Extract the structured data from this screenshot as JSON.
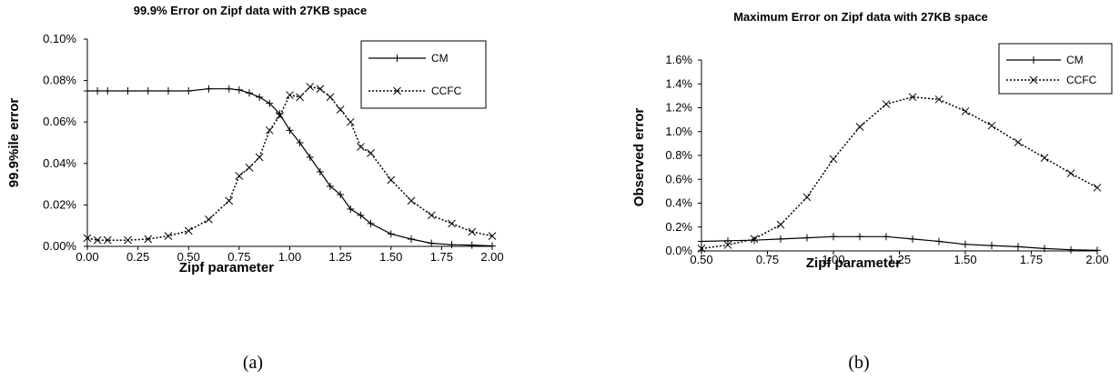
{
  "chart_data": [
    {
      "type": "line",
      "title": "99.9% Error on Zipf data with 27KB space",
      "xlabel": "Zipf parameter",
      "ylabel": "99.9%ile error",
      "xlim": [
        0,
        2
      ],
      "ylim": [
        0,
        0.1
      ],
      "x_ticks": [
        "0.00",
        "0.25",
        "0.50",
        "0.75",
        "1.00",
        "1.25",
        "1.50",
        "1.75",
        "2.00"
      ],
      "y_ticks": [
        "0.00%",
        "0.02%",
        "0.04%",
        "0.06%",
        "0.08%",
        "0.10%"
      ],
      "grid": false,
      "legend_position": "top-right",
      "caption": "(a)",
      "series": [
        {
          "name": "CM",
          "style": "solid",
          "marker": "plus",
          "x": [
            0.0,
            0.05,
            0.1,
            0.2,
            0.3,
            0.4,
            0.5,
            0.6,
            0.7,
            0.75,
            0.8,
            0.85,
            0.9,
            0.95,
            1.0,
            1.05,
            1.1,
            1.15,
            1.2,
            1.25,
            1.3,
            1.35,
            1.4,
            1.5,
            1.6,
            1.7,
            1.8,
            1.9,
            2.0
          ],
          "values": [
            0.075,
            0.075,
            0.075,
            0.075,
            0.075,
            0.075,
            0.075,
            0.076,
            0.076,
            0.0755,
            0.074,
            0.072,
            0.069,
            0.064,
            0.056,
            0.05,
            0.043,
            0.036,
            0.029,
            0.025,
            0.018,
            0.015,
            0.011,
            0.006,
            0.0035,
            0.0015,
            0.0008,
            0.0006,
            0.0002
          ]
        },
        {
          "name": "CCFC",
          "style": "dotted",
          "marker": "x",
          "x": [
            0.0,
            0.05,
            0.1,
            0.2,
            0.3,
            0.4,
            0.5,
            0.6,
            0.7,
            0.75,
            0.8,
            0.85,
            0.9,
            0.95,
            1.0,
            1.05,
            1.1,
            1.15,
            1.2,
            1.25,
            1.3,
            1.35,
            1.4,
            1.5,
            1.6,
            1.7,
            1.8,
            1.9,
            2.0
          ],
          "values": [
            0.004,
            0.003,
            0.003,
            0.003,
            0.0035,
            0.005,
            0.0075,
            0.013,
            0.022,
            0.034,
            0.038,
            0.043,
            0.056,
            0.063,
            0.073,
            0.072,
            0.077,
            0.076,
            0.072,
            0.066,
            0.06,
            0.048,
            0.045,
            0.032,
            0.022,
            0.015,
            0.011,
            0.007,
            0.005
          ]
        }
      ]
    },
    {
      "type": "line",
      "title": "Maximum Error on Zipf data with 27KB space",
      "xlabel": "Zipf parameter",
      "ylabel": "Observed error",
      "xlim": [
        0.5,
        2
      ],
      "ylim": [
        0,
        1.6
      ],
      "x_ticks": [
        "0.50",
        "0.75",
        "1.00",
        "1.25",
        "1.50",
        "1.75",
        "2.00"
      ],
      "y_ticks": [
        "0.0%",
        "0.2%",
        "0.4%",
        "0.6%",
        "0.8%",
        "1.0%",
        "1.2%",
        "1.4%",
        "1.6%"
      ],
      "grid": false,
      "legend_position": "top-right",
      "caption": "(b)",
      "series": [
        {
          "name": "CM",
          "style": "solid",
          "marker": "plus",
          "x": [
            0.5,
            0.6,
            0.7,
            0.8,
            0.9,
            1.0,
            1.1,
            1.2,
            1.3,
            1.4,
            1.5,
            1.6,
            1.7,
            1.8,
            1.9,
            2.0
          ],
          "values": [
            0.08,
            0.085,
            0.09,
            0.1,
            0.11,
            0.12,
            0.12,
            0.12,
            0.1,
            0.08,
            0.055,
            0.045,
            0.035,
            0.02,
            0.01,
            0.005
          ]
        },
        {
          "name": "CCFC",
          "style": "dotted",
          "marker": "x",
          "x": [
            0.5,
            0.6,
            0.7,
            0.8,
            0.9,
            1.0,
            1.1,
            1.2,
            1.3,
            1.4,
            1.5,
            1.6,
            1.7,
            1.8,
            1.9,
            2.0
          ],
          "values": [
            0.02,
            0.05,
            0.1,
            0.22,
            0.45,
            0.77,
            1.04,
            1.23,
            1.29,
            1.27,
            1.17,
            1.05,
            0.91,
            0.78,
            0.65,
            0.53
          ]
        }
      ]
    }
  ]
}
